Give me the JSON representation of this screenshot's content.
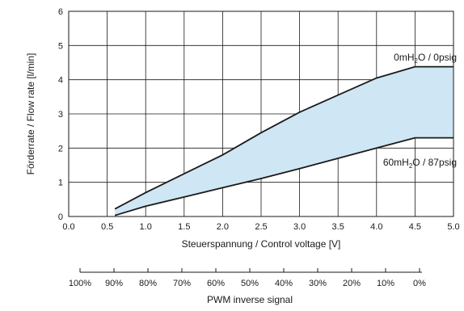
{
  "chart_data": {
    "type": "area",
    "x_label": "Steuerspannung / Control voltage [V]",
    "y_label": "Förderrate / Flow rate [l/min]",
    "xlim": [
      0.0,
      5.0
    ],
    "ylim": [
      0,
      6
    ],
    "x_ticks": [
      "0.0",
      "0.5",
      "1.0",
      "1.5",
      "2.0",
      "2.5",
      "3.0",
      "3.5",
      "4.0",
      "4.5",
      "5.0"
    ],
    "y_ticks": [
      "0",
      "1",
      "2",
      "3",
      "4",
      "5",
      "6"
    ],
    "grid": true,
    "fill_color": "#cfe6f4",
    "line_color": "#1a1a1a",
    "series": [
      {
        "name": "0mH2O / 0psig",
        "x": [
          0.6,
          1.0,
          1.5,
          2.0,
          2.5,
          3.0,
          3.5,
          4.0,
          4.5,
          5.0
        ],
        "y": [
          0.22,
          0.7,
          1.25,
          1.8,
          2.45,
          3.05,
          3.55,
          4.05,
          4.38,
          4.38
        ]
      },
      {
        "name": "60mH2O / 87psig",
        "x": [
          0.6,
          1.0,
          1.5,
          2.0,
          2.5,
          3.0,
          3.5,
          4.0,
          4.5,
          5.0
        ],
        "y": [
          0.03,
          0.3,
          0.57,
          0.84,
          1.11,
          1.4,
          1.7,
          2.0,
          2.3,
          2.3
        ]
      }
    ],
    "annotations": {
      "upper": {
        "main": "0mH",
        "sub": "2",
        "rest": "O / 0psig"
      },
      "lower": {
        "main": "60mH",
        "sub": "2",
        "rest": "O / 87psig"
      }
    },
    "secondary_axis": {
      "label": "PWM inverse signal",
      "ticks": [
        "100%",
        "90%",
        "80%",
        "70%",
        "60%",
        "50%",
        "40%",
        "30%",
        "20%",
        "10%",
        "0%"
      ]
    }
  }
}
